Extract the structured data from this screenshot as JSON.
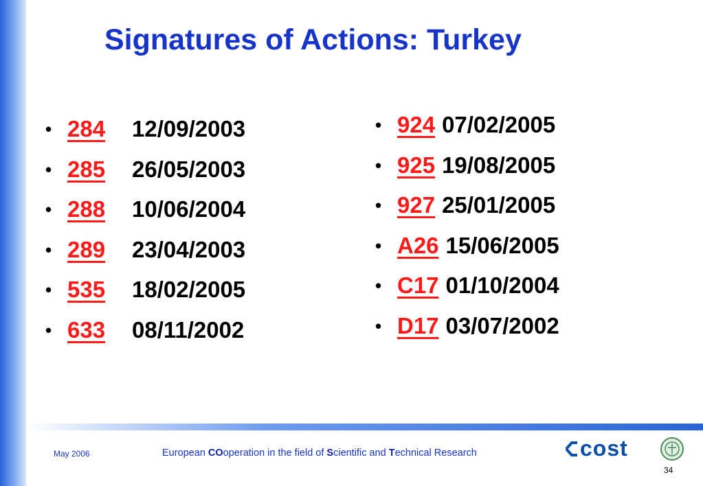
{
  "slide": {
    "title": "Signatures of Actions: Turkey",
    "bullet": "•",
    "left_items": [
      {
        "code": "284",
        "date": "12/09/2003"
      },
      {
        "code": "285",
        "date": "26/05/2003"
      },
      {
        "code": "288",
        "date": "10/06/2004"
      },
      {
        "code": "289",
        "date": "23/04/2003"
      },
      {
        "code": "535",
        "date": "18/02/2005"
      },
      {
        "code": "633",
        "date": "08/11/2002"
      }
    ],
    "right_items": [
      {
        "code": "924",
        "date": "07/02/2005"
      },
      {
        "code": "925",
        "date": "19/08/2005"
      },
      {
        "code": "927",
        "date": "25/01/2005"
      },
      {
        "code": "A26",
        "date": "15/06/2005"
      },
      {
        "code": "C17",
        "date": "01/10/2004"
      },
      {
        "code": "D17",
        "date": "03/07/2002"
      }
    ]
  },
  "footer": {
    "date": "May 2006",
    "tagline_parts": [
      "European ",
      "CO",
      "operation in the field of ",
      "S",
      "cientific and ",
      "T",
      "echnical Research"
    ],
    "page_number": "34",
    "logo_text": "cost",
    "logo_color": "#0b4fa8",
    "seal_color": "#4a8a5a"
  },
  "colors": {
    "title": "#1634c8",
    "link": "#ff1a1a",
    "accent": "#2a63d8"
  }
}
